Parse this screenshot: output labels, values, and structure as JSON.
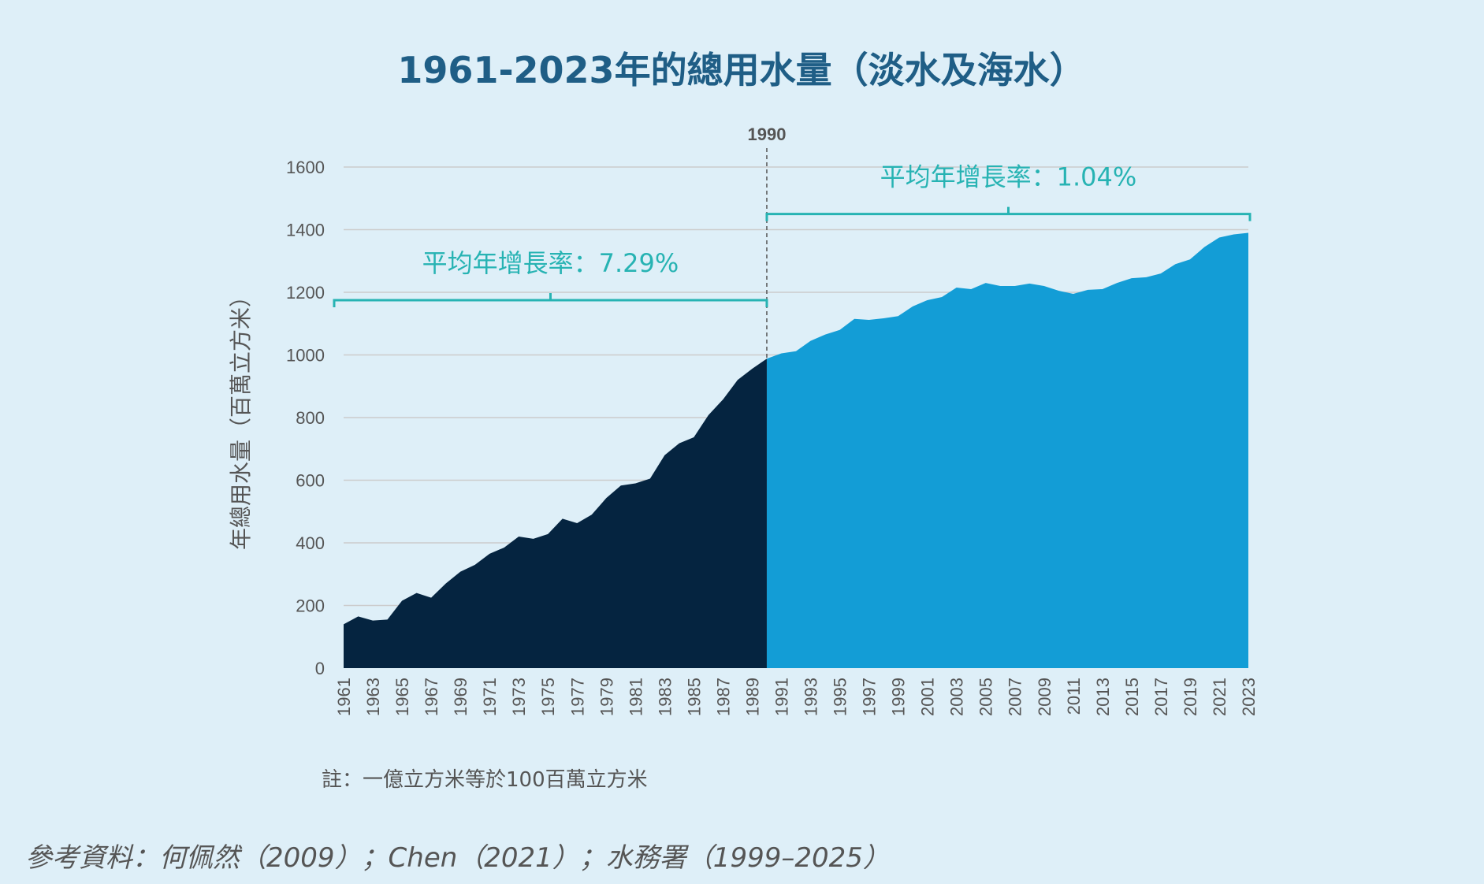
{
  "chart_data": {
    "type": "area",
    "title": "1961-2023年的總用水量（淡水及海水）",
    "ylabel": "年總用水量（百萬立方米）",
    "xlabel": "",
    "ylim": [
      0,
      1600
    ],
    "yticks": [
      0,
      200,
      400,
      600,
      800,
      1000,
      1200,
      1400,
      1600
    ],
    "grid": true,
    "x": [
      1961,
      1962,
      1963,
      1964,
      1965,
      1966,
      1967,
      1968,
      1969,
      1970,
      1971,
      1972,
      1973,
      1974,
      1975,
      1976,
      1977,
      1978,
      1979,
      1980,
      1981,
      1982,
      1983,
      1984,
      1985,
      1986,
      1987,
      1988,
      1989,
      1990,
      1991,
      1992,
      1993,
      1994,
      1995,
      1996,
      1997,
      1998,
      1999,
      2000,
      2001,
      2002,
      2003,
      2004,
      2005,
      2006,
      2007,
      2008,
      2009,
      2010,
      2011,
      2012,
      2013,
      2014,
      2015,
      2016,
      2017,
      2018,
      2019,
      2020,
      2021,
      2022,
      2023
    ],
    "x_tick_labels": [
      "1961",
      "1963",
      "1965",
      "1967",
      "1969",
      "1971",
      "1973",
      "1975",
      "1977",
      "1979",
      "1981",
      "1983",
      "1985",
      "1987",
      "1989",
      "1991",
      "1993",
      "1995",
      "1997",
      "1999",
      "2001",
      "2003",
      "2005",
      "2007",
      "2009",
      "2011",
      "2013",
      "2015",
      "2017",
      "2019",
      "2021",
      "2023"
    ],
    "values": [
      140,
      165,
      152,
      155,
      215,
      240,
      225,
      270,
      308,
      330,
      365,
      385,
      420,
      413,
      428,
      477,
      463,
      490,
      543,
      583,
      590,
      605,
      680,
      718,
      737,
      808,
      858,
      920,
      956,
      988,
      1005,
      1012,
      1045,
      1065,
      1080,
      1115,
      1112,
      1117,
      1124,
      1155,
      1175,
      1185,
      1215,
      1210,
      1230,
      1220,
      1220,
      1228,
      1220,
      1205,
      1195,
      1208,
      1210,
      1230,
      1245,
      1248,
      1260,
      1290,
      1305,
      1345,
      1375,
      1385,
      1390
    ],
    "split_year": 1990,
    "split_label": "1990",
    "colors": {
      "before": "#052440",
      "after": "#139dd6",
      "accent": "#27b3b3",
      "grid": "#cccccc",
      "title": "#1f5e86",
      "text": "#555555"
    },
    "annotations": [
      {
        "label": "平均年增長率：7.29%",
        "from": 1961,
        "to": 1990,
        "y_data": 1175
      },
      {
        "label": "平均年增長率：1.04%",
        "from": 1990,
        "to": 2023,
        "y_data": 1450
      }
    ]
  },
  "note": "註：一億立方米等於100百萬立方米",
  "source": "參考資料：何佩然（2009）；Chen（2021）；水務署（1999–2025）"
}
